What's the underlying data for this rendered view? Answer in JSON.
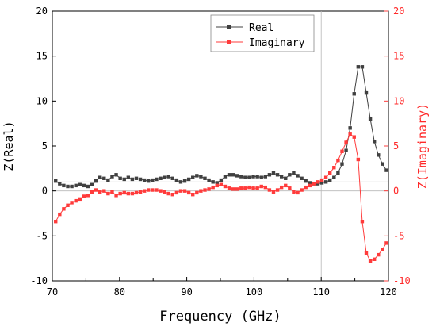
{
  "chart_data": {
    "type": "line",
    "title": "",
    "xlabel": "Frequency (GHz)",
    "ylabel": "Z(Real)",
    "ylabel_right": "Z(Imaginary)",
    "xlim": [
      70,
      120
    ],
    "ylim": [
      -10,
      20
    ],
    "ylim_right": [
      -10,
      20
    ],
    "x_ticks": [
      "70",
      "80",
      "90",
      "100",
      "110",
      "120"
    ],
    "y_ticks": [
      "-10",
      "-5",
      "0",
      "5",
      "10",
      "15",
      "20"
    ],
    "y_ticks_right": [
      "-10",
      "-5",
      "0",
      "5",
      "10",
      "15",
      "20"
    ],
    "vertical_reference_lines": [
      75,
      110
    ],
    "horizontal_reference_lines": [
      0,
      1
    ],
    "legend_position": "top-center",
    "series": [
      {
        "name": "Real",
        "color": "#404040",
        "axis": "left",
        "x": [
          70.5,
          71.1,
          71.7,
          72.3,
          72.9,
          73.5,
          74.1,
          74.7,
          75.3,
          75.9,
          76.5,
          77.1,
          77.7,
          78.3,
          78.9,
          79.5,
          80.1,
          80.7,
          81.3,
          81.9,
          82.5,
          83.1,
          83.7,
          84.3,
          84.9,
          85.5,
          86.1,
          86.7,
          87.3,
          87.9,
          88.5,
          89.1,
          89.7,
          90.3,
          90.9,
          91.5,
          92.1,
          92.7,
          93.3,
          93.9,
          94.5,
          95.1,
          95.7,
          96.3,
          96.9,
          97.5,
          98.1,
          98.7,
          99.3,
          99.9,
          100.5,
          101.1,
          101.7,
          102.3,
          102.9,
          103.5,
          104.1,
          104.7,
          105.3,
          105.9,
          106.5,
          107.1,
          107.7,
          108.3,
          108.9,
          109.5,
          110.1,
          110.7,
          111.3,
          111.9,
          112.5,
          113.1,
          113.7,
          114.3,
          114.9,
          115.5,
          116.1,
          116.7,
          117.3,
          117.9,
          118.5,
          119.1,
          119.7
        ],
        "y": [
          1.1,
          0.8,
          0.6,
          0.5,
          0.5,
          0.6,
          0.7,
          0.6,
          0.5,
          0.7,
          1.1,
          1.5,
          1.4,
          1.2,
          1.6,
          1.8,
          1.4,
          1.3,
          1.5,
          1.3,
          1.4,
          1.3,
          1.2,
          1.1,
          1.2,
          1.3,
          1.4,
          1.5,
          1.6,
          1.4,
          1.2,
          1.0,
          1.1,
          1.3,
          1.5,
          1.7,
          1.6,
          1.4,
          1.2,
          1.0,
          0.9,
          1.2,
          1.6,
          1.8,
          1.8,
          1.7,
          1.6,
          1.5,
          1.5,
          1.6,
          1.6,
          1.5,
          1.6,
          1.8,
          2.0,
          1.8,
          1.6,
          1.4,
          1.8,
          2.0,
          1.7,
          1.4,
          1.1,
          0.9,
          0.8,
          0.8,
          0.9,
          1.0,
          1.2,
          1.5,
          2.0,
          3.0,
          4.5,
          7.0,
          10.8,
          13.8,
          13.8,
          10.9,
          8.0,
          5.5,
          4.0,
          3.0,
          2.3
        ]
      },
      {
        "name": "Imaginary",
        "color": "#ff3b3b",
        "axis": "right",
        "x": [
          70.5,
          71.1,
          71.7,
          72.3,
          72.9,
          73.5,
          74.1,
          74.7,
          75.3,
          75.9,
          76.5,
          77.1,
          77.7,
          78.3,
          78.9,
          79.5,
          80.1,
          80.7,
          81.3,
          81.9,
          82.5,
          83.1,
          83.7,
          84.3,
          84.9,
          85.5,
          86.1,
          86.7,
          87.3,
          87.9,
          88.5,
          89.1,
          89.7,
          90.3,
          90.9,
          91.5,
          92.1,
          92.7,
          93.3,
          93.9,
          94.5,
          95.1,
          95.7,
          96.3,
          96.9,
          97.5,
          98.1,
          98.7,
          99.3,
          99.9,
          100.5,
          101.1,
          101.7,
          102.3,
          102.9,
          103.5,
          104.1,
          104.7,
          105.3,
          105.9,
          106.5,
          107.1,
          107.7,
          108.3,
          108.9,
          109.5,
          110.1,
          110.7,
          111.3,
          111.9,
          112.5,
          113.1,
          113.7,
          114.3,
          114.9,
          115.5,
          116.1,
          116.7,
          117.3,
          117.9,
          118.5,
          119.1,
          119.7
        ],
        "y": [
          -3.4,
          -2.6,
          -2.0,
          -1.6,
          -1.3,
          -1.1,
          -0.9,
          -0.6,
          -0.5,
          -0.1,
          0.1,
          -0.1,
          0.0,
          -0.3,
          -0.1,
          -0.5,
          -0.3,
          -0.2,
          -0.3,
          -0.3,
          -0.2,
          -0.1,
          0.0,
          0.1,
          0.1,
          0.1,
          0.0,
          -0.1,
          -0.3,
          -0.4,
          -0.2,
          0.0,
          0.0,
          -0.2,
          -0.4,
          -0.2,
          0.0,
          0.1,
          0.2,
          0.4,
          0.6,
          0.7,
          0.5,
          0.3,
          0.2,
          0.2,
          0.3,
          0.3,
          0.4,
          0.3,
          0.3,
          0.5,
          0.4,
          0.1,
          -0.1,
          0.1,
          0.4,
          0.6,
          0.3,
          -0.1,
          -0.2,
          0.1,
          0.4,
          0.6,
          0.8,
          1.0,
          1.2,
          1.5,
          2.0,
          2.6,
          3.4,
          4.4,
          5.4,
          6.3,
          6.0,
          3.5,
          -3.4,
          -6.9,
          -7.8,
          -7.6,
          -7.1,
          -6.5,
          -5.8
        ]
      }
    ]
  }
}
